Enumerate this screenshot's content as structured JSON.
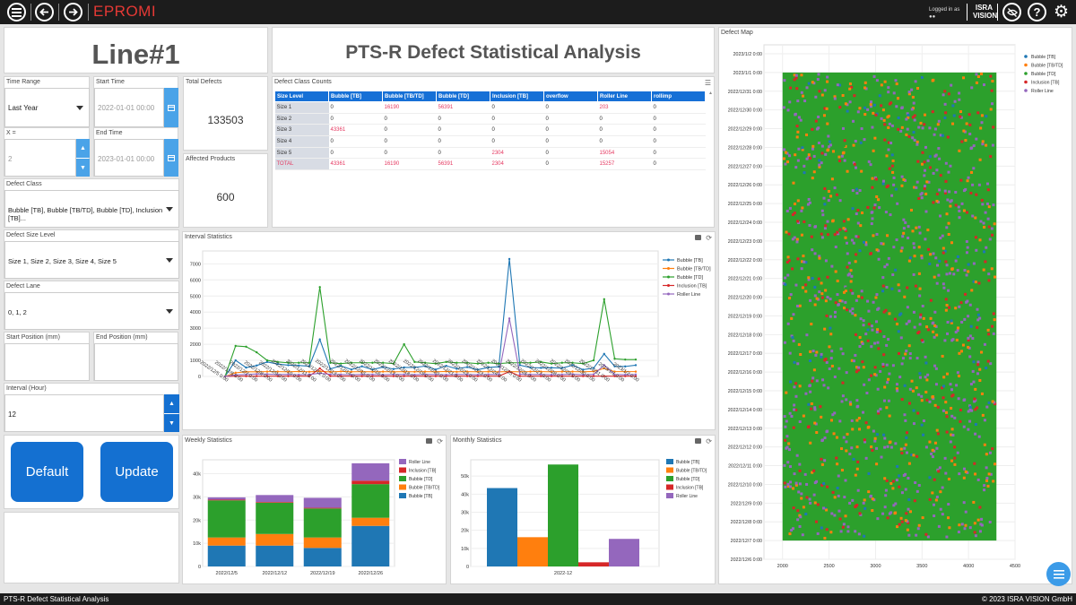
{
  "header": {
    "app_title": "EPROMI",
    "logged_in": "Logged in as",
    "logged_user": "●●",
    "brand_top": "ISRA",
    "brand_bottom": "VISION"
  },
  "line_title": "Line#1",
  "page_heading": "PTS-R Defect Statistical Analysis",
  "filters": {
    "time_range": {
      "label": "Time Range",
      "value": "Last Year"
    },
    "start_time": {
      "label": "Start Time",
      "value": "2022-01-01 00:00"
    },
    "x": {
      "label": "X =",
      "value": "2"
    },
    "end_time": {
      "label": "End Time",
      "value": "2023-01-01 00:00"
    },
    "defect_class": {
      "label": "Defect Class",
      "value": "Bubble [TB], Bubble [TB/TD], Bubble [TD], Inclusion [TB]..."
    },
    "defect_size_level": {
      "label": "Defect Size Level",
      "value": "Size 1, Size 2, Size 3, Size 4, Size 5"
    },
    "defect_lane": {
      "label": "Defect Lane",
      "value": "0, 1, 2"
    },
    "start_position": {
      "label": "Start Position (mm)",
      "value": ""
    },
    "end_position": {
      "label": "End Position (mm)",
      "value": ""
    },
    "interval": {
      "label": "Interval (Hour)",
      "value": "12"
    }
  },
  "buttons": {
    "default": "Default",
    "update": "Update"
  },
  "total_defects": {
    "label": "Total Defects",
    "value": "133503"
  },
  "affected_products": {
    "label": "Affected Products",
    "value": "600"
  },
  "defect_class_counts": {
    "label": "Defect Class Counts",
    "columns": [
      "Size Level",
      "Bubble [TB]",
      "Bubble [TB/TD]",
      "Bubble [TD]",
      "Inclusion [TB]",
      "overflow",
      "Roller Line",
      "rollimp"
    ],
    "rows": [
      [
        "Size 1",
        "0",
        "16190",
        "56391",
        "0",
        "0",
        "203",
        "0"
      ],
      [
        "Size 2",
        "0",
        "0",
        "0",
        "0",
        "0",
        "0",
        "0"
      ],
      [
        "Size 3",
        "43361",
        "0",
        "0",
        "0",
        "0",
        "0",
        "0"
      ],
      [
        "Size 4",
        "0",
        "0",
        "0",
        "0",
        "0",
        "0",
        "0"
      ],
      [
        "Size 5",
        "0",
        "0",
        "0",
        "2304",
        "0",
        "15054",
        "0"
      ],
      [
        "TOTAL",
        "43361",
        "16190",
        "56391",
        "2304",
        "0",
        "15257",
        "0"
      ]
    ]
  },
  "series_colors": {
    "Bubble [TB]": "#1f77b4",
    "Bubble [TB/TD]": "#ff7f0e",
    "Bubble [TD]": "#2ca02c",
    "Inclusion [TB]": "#d62728",
    "Roller Line": "#9467bd"
  },
  "interval_title": "Interval Statistics",
  "weekly_title": "Weekly Statistics",
  "monthly_title": "Monthly Statistics",
  "map_title": "Defect Map",
  "footer": {
    "left": "PTS-R Defect Statistical Analysis",
    "right": "© 2023 ISRA VISION GmbH"
  },
  "chart_data": [
    {
      "type": "line",
      "title": "Interval Statistics",
      "x_labels": [
        "2022/12/5 0:00",
        "2022/12/6 0:00",
        "2022/12/7 0:00",
        "2022/12/8 0:00",
        "2022/12/9 0:00",
        "2022/12/10 0:00",
        "2022/12/11 0:00",
        "2022/12/12 0:00",
        "2022/12/13 0:00",
        "2022/12/14 0:00",
        "2022/12/15 0:00",
        "2022/12/16 0:00",
        "2022/12/17 0:00",
        "2022/12/18 0:00",
        "2022/12/19 0:00",
        "2022/12/20 0:00",
        "2022/12/21 0:00",
        "2022/12/22 0:00",
        "2022/12/23 0:00",
        "2022/12/24 0:00",
        "2022/12/25 0:00",
        "2022/12/26 0:00",
        "2022/12/27 0:00",
        "2022/12/28 0:00",
        "2022/12/29 0:00",
        "2022/12/30 0:00",
        "2022/12/31 0:00",
        "2023/1/1 0:00",
        "2023/1/2 0:00"
      ],
      "yticks": [
        0,
        1000,
        2000,
        3000,
        4000,
        5000,
        6000,
        7000
      ],
      "ylim": [
        0,
        7800
      ],
      "legend": "top-right",
      "grid": true,
      "series": [
        {
          "name": "Bubble  [TB]",
          "color": "#1f77b4",
          "values": [
            0,
            1000,
            550,
            680,
            900,
            770,
            700,
            680,
            640,
            2300,
            470,
            660,
            430,
            630,
            430,
            580,
            460,
            560,
            560,
            640,
            430,
            660,
            480,
            580,
            420,
            560,
            600,
            7300,
            700,
            550,
            530,
            540,
            520,
            700,
            420,
            520,
            1400,
            630,
            620,
            700
          ]
        },
        {
          "name": "Bubble [TB/TD]",
          "color": "#ff7f0e",
          "values": [
            0,
            230,
            290,
            290,
            300,
            300,
            290,
            310,
            290,
            320,
            280,
            310,
            290,
            300,
            290,
            300,
            290,
            300,
            290,
            300,
            290,
            310,
            290,
            300,
            290,
            300,
            290,
            300,
            290,
            300,
            300,
            290,
            300,
            300,
            290,
            310,
            500,
            300,
            300,
            300
          ]
        },
        {
          "name": "Bubble  [TD]",
          "color": "#2ca02c",
          "values": [
            0,
            1900,
            1850,
            1500,
            1000,
            900,
            850,
            850,
            850,
            5550,
            850,
            800,
            850,
            850,
            850,
            850,
            800,
            2000,
            900,
            850,
            800,
            900,
            850,
            850,
            800,
            850,
            800,
            850,
            850,
            850,
            900,
            800,
            850,
            850,
            800,
            1000,
            4800,
            1100,
            1050,
            1050
          ]
        },
        {
          "name": "Inclusion [TB]",
          "color": "#d62728",
          "values": [
            0,
            20,
            20,
            20,
            20,
            20,
            20,
            20,
            20,
            500,
            20,
            20,
            20,
            20,
            20,
            20,
            20,
            20,
            20,
            20,
            20,
            20,
            20,
            20,
            20,
            20,
            20,
            300,
            20,
            20,
            20,
            20,
            20,
            20,
            20,
            20,
            20,
            20,
            20,
            20
          ]
        },
        {
          "name": "Roller  Line",
          "color": "#9467bd",
          "values": [
            0,
            100,
            120,
            150,
            140,
            120,
            130,
            110,
            120,
            200,
            130,
            120,
            110,
            130,
            120,
            110,
            130,
            120,
            110,
            130,
            120,
            110,
            130,
            120,
            110,
            130,
            120,
            3600,
            140,
            120,
            130,
            110,
            120,
            140,
            110,
            130,
            700,
            120,
            110,
            120
          ]
        }
      ]
    },
    {
      "type": "bar",
      "stacked": true,
      "title": "Weekly Statistics",
      "categories": [
        "2022/12/5",
        "2022/12/12",
        "2022/12/19",
        "2022/12/26"
      ],
      "yticks": [
        0,
        10000,
        20000,
        30000,
        40000
      ],
      "ytick_labels": [
        "0",
        "10k",
        "20k",
        "30k",
        "40k"
      ],
      "ylim": [
        0,
        46000
      ],
      "legend": "top-right",
      "series": [
        {
          "name": "Bubble  [TB]",
          "color": "#1f77b4",
          "values": [
            9000,
            9000,
            8000,
            17500
          ]
        },
        {
          "name": "Bubble [TB/TD]",
          "color": "#ff7f0e",
          "values": [
            3500,
            5000,
            4500,
            3500
          ]
        },
        {
          "name": "Bubble [TD]",
          "color": "#2ca02c",
          "values": [
            16000,
            13500,
            12500,
            14500
          ]
        },
        {
          "name": "Inclusion [TB]",
          "color": "#d62728",
          "values": [
            300,
            300,
            300,
            1500
          ]
        },
        {
          "name": "Roller  Line",
          "color": "#9467bd",
          "values": [
            1000,
            3000,
            4300,
            7500
          ]
        }
      ]
    },
    {
      "type": "bar",
      "title": "Monthly Statistics",
      "categories": [
        "2022-12"
      ],
      "yticks": [
        0,
        10000,
        20000,
        30000,
        40000,
        50000
      ],
      "ytick_labels": [
        "0",
        "10k",
        "20k",
        "30k",
        "40k",
        "50k"
      ],
      "ylim": [
        0,
        59000
      ],
      "legend": "top-right",
      "series": [
        {
          "name": "Bubble  [TB]",
          "color": "#1f77b4",
          "values": [
            43361
          ]
        },
        {
          "name": "Bubble [TB/TD]",
          "color": "#ff7f0e",
          "values": [
            16190
          ]
        },
        {
          "name": "Bubble [TD]",
          "color": "#2ca02c",
          "values": [
            56391
          ]
        },
        {
          "name": "Inclusion [TB]",
          "color": "#d62728",
          "values": [
            2304
          ]
        },
        {
          "name": "Roller  Line",
          "color": "#9467bd",
          "values": [
            15257
          ]
        }
      ]
    },
    {
      "type": "scatter",
      "title": "Defect Map",
      "xlim": [
        1800,
        4500
      ],
      "xticks": [
        2000,
        2500,
        3000,
        3500,
        4000,
        4500
      ],
      "ylim": [
        "2022/12/6 0:00",
        "2023/1/2 0:00"
      ],
      "yticks": [
        "2022/12/6 0:00",
        "2022/12/7 0:00",
        "2022/12/8 0:00",
        "2022/12/9 0:00",
        "2022/12/10 0:00",
        "2022/12/11 0:00",
        "2022/12/12 0:00",
        "2022/12/13 0:00",
        "2022/12/14 0:00",
        "2022/12/15 0:00",
        "2022/12/16 0:00",
        "2022/12/17 0:00",
        "2022/12/18 0:00",
        "2022/12/19 0:00",
        "2022/12/20 0:00",
        "2022/12/21 0:00",
        "2022/12/22 0:00",
        "2022/12/23 0:00",
        "2022/12/24 0:00",
        "2022/12/25 0:00",
        "2022/12/26 0:00",
        "2022/12/27 0:00",
        "2022/12/28 0:00",
        "2022/12/29 0:00",
        "2022/12/30 0:00",
        "2022/12/31 0:00",
        "2023/1/1 0:00",
        "2023/1/2 0:00"
      ],
      "legend": "top-right",
      "density_region": {
        "x_range": [
          2000,
          4300
        ],
        "y_range": [
          "2022/12/7 0:00",
          "2023/1/1 0:00"
        ]
      },
      "series": [
        {
          "name": "Bubble  [TB]",
          "color": "#1f77b4"
        },
        {
          "name": "Bubble [TB/TD]",
          "color": "#ff7f0e"
        },
        {
          "name": "Bubble [TD]",
          "color": "#2ca02c"
        },
        {
          "name": "Inclusion [TB]",
          "color": "#d62728"
        },
        {
          "name": "Roller  Line",
          "color": "#9467bd"
        }
      ]
    }
  ],
  "icons": [
    "menu-icon",
    "back-icon",
    "forward-icon",
    "hide-icon",
    "help-icon",
    "settings-icon",
    "calendar-icon",
    "fab-menu-icon"
  ]
}
